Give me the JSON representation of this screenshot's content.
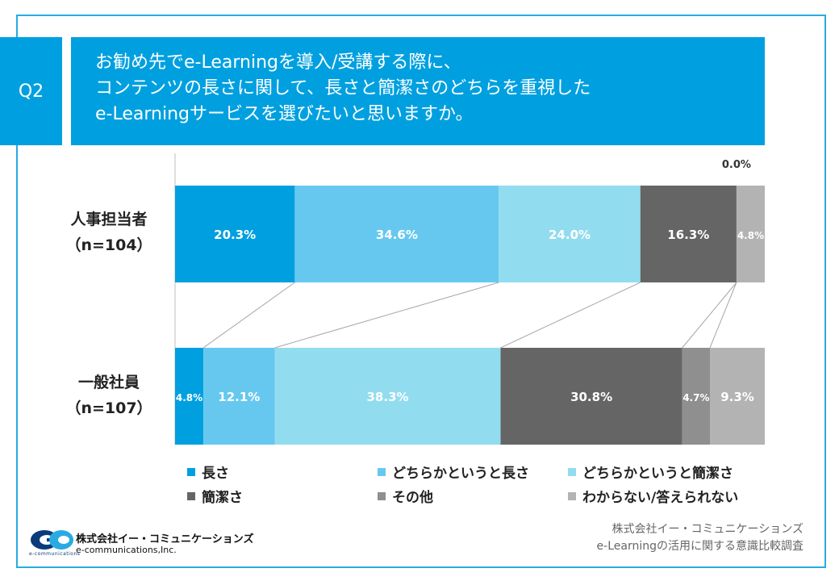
{
  "question": {
    "badge": "Q2",
    "lines": [
      "お勧め先でe-Learningを導入/受講する際に、",
      "コンテンツの長さに関して、長さと簡潔さのどちらを重視した",
      "e-Learningサービスを選びたいと思いますか。"
    ]
  },
  "rows": [
    {
      "name": "人事担当者",
      "n": "（n=104）"
    },
    {
      "name": "一般社員",
      "n": "（n=107）"
    }
  ],
  "colors": [
    "#00a0e0",
    "#66c8ef",
    "#92dcf0",
    "#656565",
    "#8f8f8f",
    "#b3b3b3"
  ],
  "chart_data": {
    "type": "bar",
    "orientation": "horizontal-stacked-100",
    "categories": [
      "人事担当者（n=104）",
      "一般社員（n=107）"
    ],
    "series": [
      {
        "name": "長さ",
        "values": [
          20.3,
          4.8
        ]
      },
      {
        "name": "どちらかというと長さ",
        "values": [
          34.6,
          12.1
        ]
      },
      {
        "name": "どちらかというと簡潔さ",
        "values": [
          24.0,
          38.3
        ]
      },
      {
        "name": "簡潔さ",
        "values": [
          16.3,
          30.8
        ]
      },
      {
        "name": "その他",
        "values": [
          0.0,
          4.7
        ]
      },
      {
        "name": "わからない/答えられない",
        "values": [
          4.8,
          9.3
        ]
      }
    ],
    "labels": [
      [
        "20.3%",
        "34.6%",
        "24.0%",
        "16.3%",
        "0.0%",
        "4.8%"
      ],
      [
        "4.8%",
        "12.1%",
        "38.3%",
        "30.8%",
        "4.7%",
        "9.3%"
      ]
    ],
    "xlim": [
      0,
      100
    ],
    "legend_position": "bottom",
    "grid": false
  },
  "footer": {
    "company": "株式会社イー・コミュニケーションズ",
    "survey": "e-Learningの活用に関する意識比較調査"
  },
  "logo": {
    "name_jp": "株式会社イー・コミュニケーションズ",
    "name_en": "e-communications,Inc.",
    "mark_text": "e-communications"
  }
}
